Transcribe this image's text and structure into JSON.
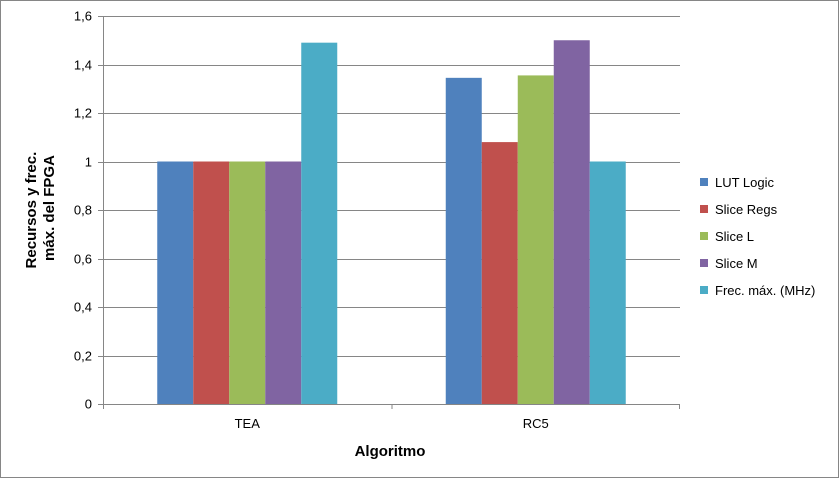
{
  "chart_data": {
    "type": "bar",
    "title": "",
    "xlabel": "Algoritmo",
    "ylabel_lines": [
      "Recursos y frec.",
      "máx. del FPGA"
    ],
    "categories": [
      "TEA",
      "RC5"
    ],
    "series": [
      {
        "name": "LUT Logic",
        "color": "#4F81BD",
        "values": [
          1.0,
          1.345
        ]
      },
      {
        "name": "Slice Regs",
        "color": "#C0504D",
        "values": [
          1.0,
          1.08
        ]
      },
      {
        "name": "Slice L",
        "color": "#9BBB59",
        "values": [
          1.0,
          1.355
        ]
      },
      {
        "name": "Slice M",
        "color": "#8064A2",
        "values": [
          1.0,
          1.5
        ]
      },
      {
        "name": "Frec. máx. (MHz)",
        "color": "#4BACC6",
        "values": [
          1.49,
          1.0
        ]
      }
    ],
    "ylim": [
      0,
      1.6
    ],
    "yticks": [
      0,
      0.2,
      0.4,
      0.6,
      0.8,
      1,
      1.2,
      1.4,
      1.6
    ],
    "ytick_labels": [
      "0",
      "0,2",
      "0,4",
      "0,6",
      "0,8",
      "1",
      "1,2",
      "1,4",
      "1,6"
    ],
    "grid": true,
    "legend_position": "right"
  }
}
